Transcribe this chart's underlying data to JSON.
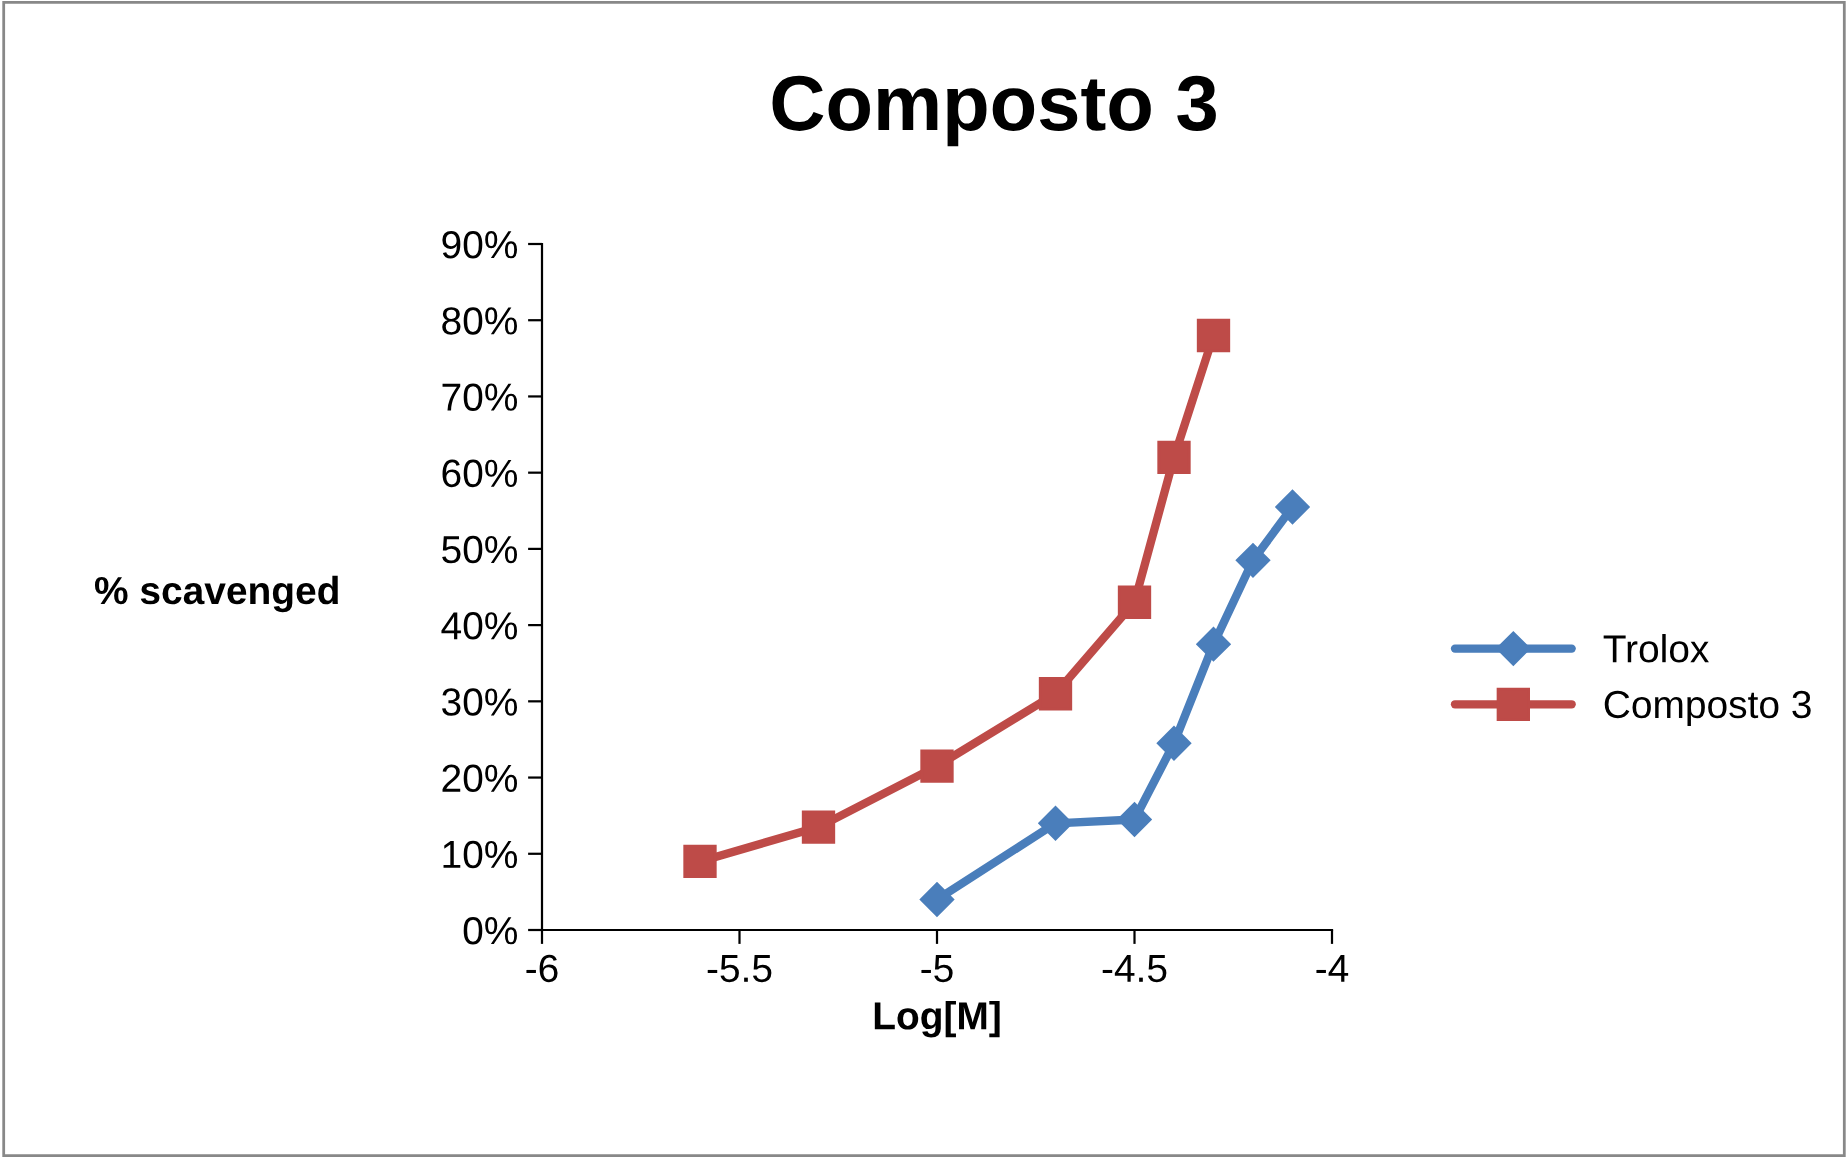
{
  "chart_data": {
    "type": "line",
    "title": "Composto 3",
    "xlabel": "Log[M]",
    "ylabel": "% scavenged",
    "series": [
      {
        "name": "Trolox",
        "color": "#4a7ebb",
        "marker": "diamond",
        "x": [
          -5,
          -4.7,
          -4.5,
          -4.4,
          -4.3,
          -4.2,
          -4.1
        ],
        "values": [
          4,
          14,
          14.5,
          24.5,
          37.5,
          48.5,
          55.5
        ]
      },
      {
        "name": "Composto 3",
        "color": "#be4b48",
        "marker": "square",
        "x": [
          -5.6,
          -5.3,
          -5,
          -4.7,
          -4.5,
          -4.4,
          -4.3
        ],
        "values": [
          9,
          13.5,
          21.5,
          31,
          43,
          62,
          78
        ]
      }
    ],
    "xlim": [
      -6,
      -4
    ],
    "xticks": [
      -6,
      -5.5,
      -5,
      -4.5,
      -4
    ],
    "ylim": [
      0,
      90
    ],
    "yticks": [
      {
        "value": 0,
        "label": "0%"
      },
      {
        "value": 10,
        "label": "10%"
      },
      {
        "value": 20,
        "label": "20%"
      },
      {
        "value": 30,
        "label": "30%"
      },
      {
        "value": 40,
        "label": "40%"
      },
      {
        "value": 50,
        "label": "50%"
      },
      {
        "value": 60,
        "label": "60%"
      },
      {
        "value": 70,
        "label": "70%"
      },
      {
        "value": 80,
        "label": "80%"
      },
      {
        "value": 90,
        "label": "90%"
      }
    ],
    "grid": false,
    "legend": "right",
    "line_style": "solid"
  }
}
